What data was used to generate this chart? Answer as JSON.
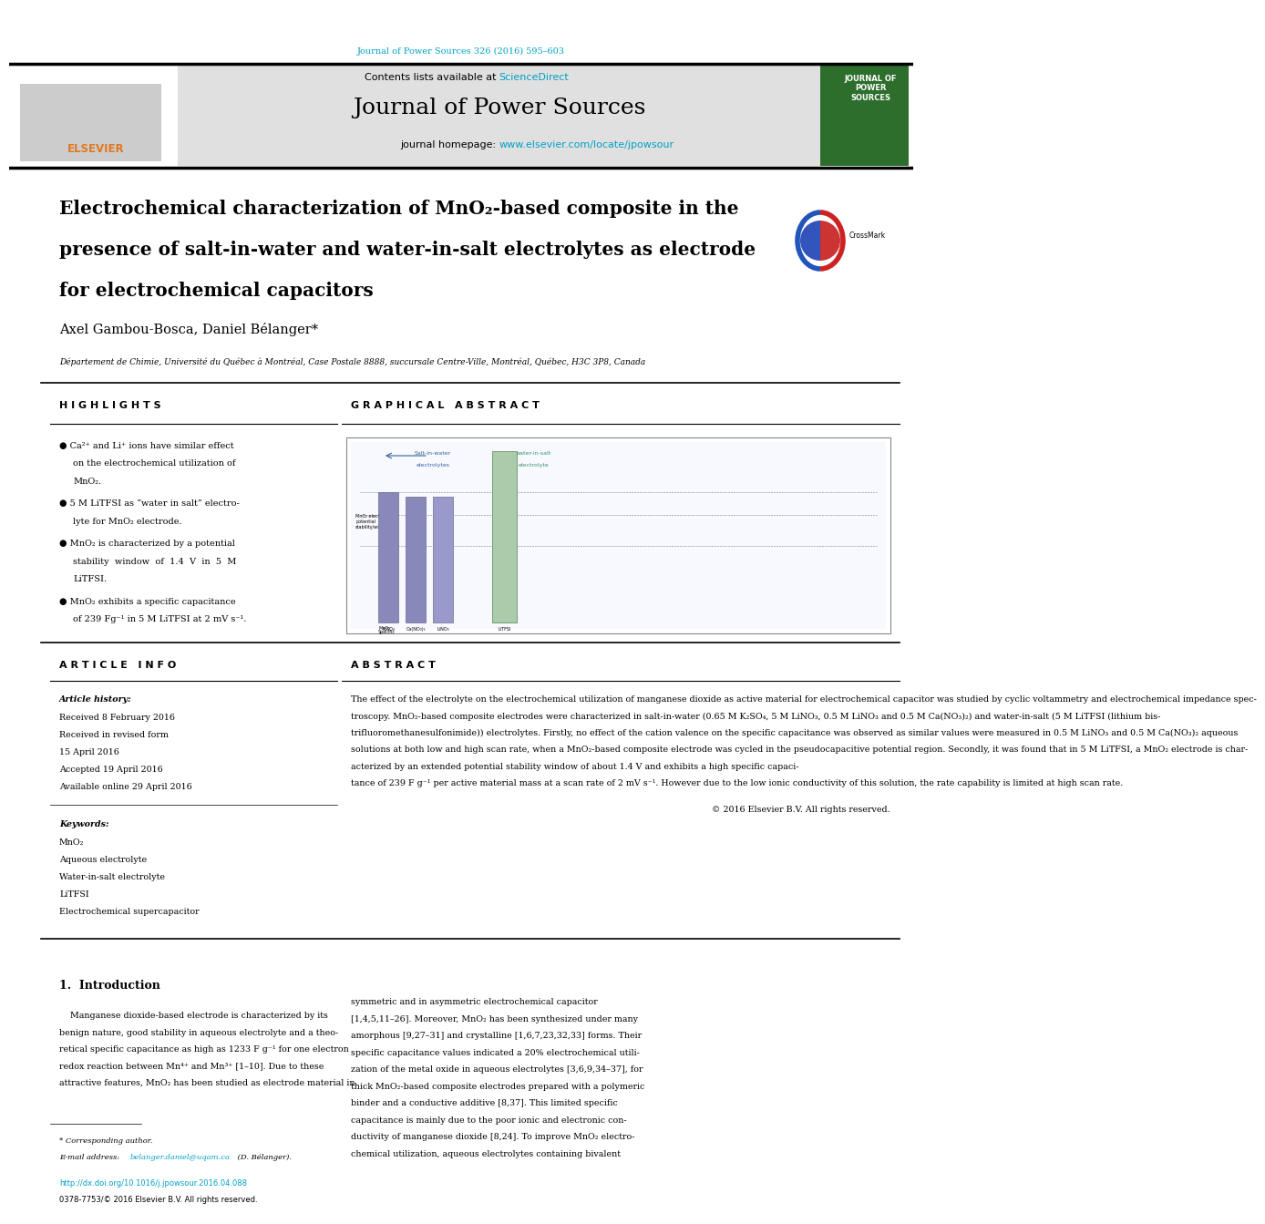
{
  "page_width": 9.92,
  "page_height": 13.23,
  "bg_color": "#ffffff",
  "journal_ref": "Journal of Power Sources 326 (2016) 595–603",
  "journal_ref_color": "#00a0c6",
  "header_bg": "#e0e0e0",
  "elsevier_text": "ELSEVIER",
  "elsevier_color": "#e07820",
  "contents_text": "Contents lists available at ",
  "sciencedirect_text": "ScienceDirect",
  "sciencedirect_color": "#00a0c6",
  "journal_name": "Journal of Power Sources",
  "journal_homepage_prefix": "journal homepage: ",
  "journal_homepage_url": "www.elsevier.com/locate/jpowsour",
  "journal_homepage_url_color": "#00a0c6",
  "title_line1": "Electrochemical characterization of MnO₂-based composite in the",
  "title_line2": "presence of salt-in-water and water-in-salt electrolytes as electrode",
  "title_line3": "for electrochemical capacitors",
  "authors": "Axel Gambou-Bosca, Daniel Bélanger",
  "affiliation": "Département de Chimie, Université du Québec à Montréal, Case Postale 8888, succursale Centre-Ville, Montréal, Québec, H3C 3P8, Canada",
  "highlights_title": "H I G H L I G H T S",
  "highlight1_lines": [
    "Ca²⁺ and Li⁺ ions have similar effect",
    "on the electrochemical utilization of",
    "MnO₂."
  ],
  "highlight2_lines": [
    "5 M LiTFSI as “water in salt” electro-",
    "lyte for MnO₂ electrode."
  ],
  "highlight3_lines": [
    "MnO₂ is characterized by a potential",
    "stability  window  of  1.4  V  in  5  M",
    "LiTFSI."
  ],
  "highlight4_lines": [
    "MnO₂ exhibits a specific capacitance",
    "of 239 Fg⁻¹ in 5 M LiTFSI at 2 mV s⁻¹."
  ],
  "graphical_abstract_title": "G R A P H I C A L   A B S T R A C T",
  "article_info_title": "A R T I C L E   I N F O",
  "article_history_title": "Article history:",
  "received": "Received 8 February 2016",
  "received_revised": "Received in revised form",
  "revised_date": "15 April 2016",
  "accepted": "Accepted 19 April 2016",
  "available": "Available online 29 April 2016",
  "keywords_title": "Keywords:",
  "keywords": [
    "MnO₂",
    "Aqueous electrolyte",
    "Water-in-salt electrolyte",
    "LiTFSI",
    "Electrochemical supercapacitor"
  ],
  "abstract_title": "A B S T R A C T",
  "abstract_lines": [
    "The effect of the electrolyte on the electrochemical utilization of manganese dioxide as active material for electrochemical capacitor was studied by cyclic voltammetry and electrochemical impedance spec-",
    "troscopy. MnO₂-based composite electrodes were characterized in salt-in-water (0.65 M K₂SO₄, 5 M LiNO₃, 0.5 M LiNO₃ and 0.5 M Ca(NO₃)₂) and water-in-salt (5 M LiTFSI (lithium bis-",
    "trifluoromethanesulfonimide)) electrolytes. Firstly, no effect of the cation valence on the specific capacitance was observed as similar values were measured in 0.5 M LiNO₃ and 0.5 M Ca(NO₃)₂ aqueous",
    "solutions at both low and high scan rate, when a MnO₂-based composite electrode was cycled in the pseudocapacitive potential region. Secondly, it was found that in 5 M LiTFSI, a MnO₂ electrode is char-",
    "acterized by an extended potential stability window of about 1.4 V and exhibits a high specific capaci-",
    "tance of 239 F g⁻¹ per active material mass at a scan rate of 2 mV s⁻¹. However due to the low ionic conductivity of this solution, the rate capability is limited at high scan rate."
  ],
  "copyright": "© 2016 Elsevier B.V. All rights reserved.",
  "intro_title": "1.  Introduction",
  "intro_col1_lines": [
    "    Manganese dioxide-based electrode is characterized by its",
    "benign nature, good stability in aqueous electrolyte and a theo-",
    "retical specific capacitance as high as 1233 F g⁻¹ for one electron",
    "redox reaction between Mn⁴⁺ and Mn³⁺ [1–10]. Due to these",
    "attractive features, MnO₂ has been studied as electrode material in"
  ],
  "intro_col2_lines": [
    "symmetric and in asymmetric electrochemical capacitor",
    "[1,4,5,11–26]. Moreover, MnO₂ has been synthesized under many",
    "amorphous [9,27–31] and crystalline [1,6,7,23,32,33] forms. Their",
    "specific capacitance values indicated a 20% electrochemical utili-",
    "zation of the metal oxide in aqueous electrolytes [3,6,9,34–37], for",
    "thick MnO₂-based composite electrodes prepared with a polymeric",
    "binder and a conductive additive [8,37]. This limited specific",
    "capacitance is mainly due to the poor ionic and electronic con-",
    "ductivity of manganese dioxide [8,24]. To improve MnO₂ electro-",
    "chemical utilization, aqueous electrolytes containing bivalent"
  ],
  "corresponding_author": "* Corresponding author.",
  "email_label": "E-mail address: ",
  "email": "belanger.daniel@uqam.ca",
  "email_color": "#00a0c6",
  "email_suffix": " (D. Bélanger).",
  "doi": "http://dx.doi.org/10.1016/j.jpowsour.2016.04.088",
  "doi_color": "#00a0c6",
  "issn": "0378-7753/© 2016 Elsevier B.V. All rights reserved."
}
